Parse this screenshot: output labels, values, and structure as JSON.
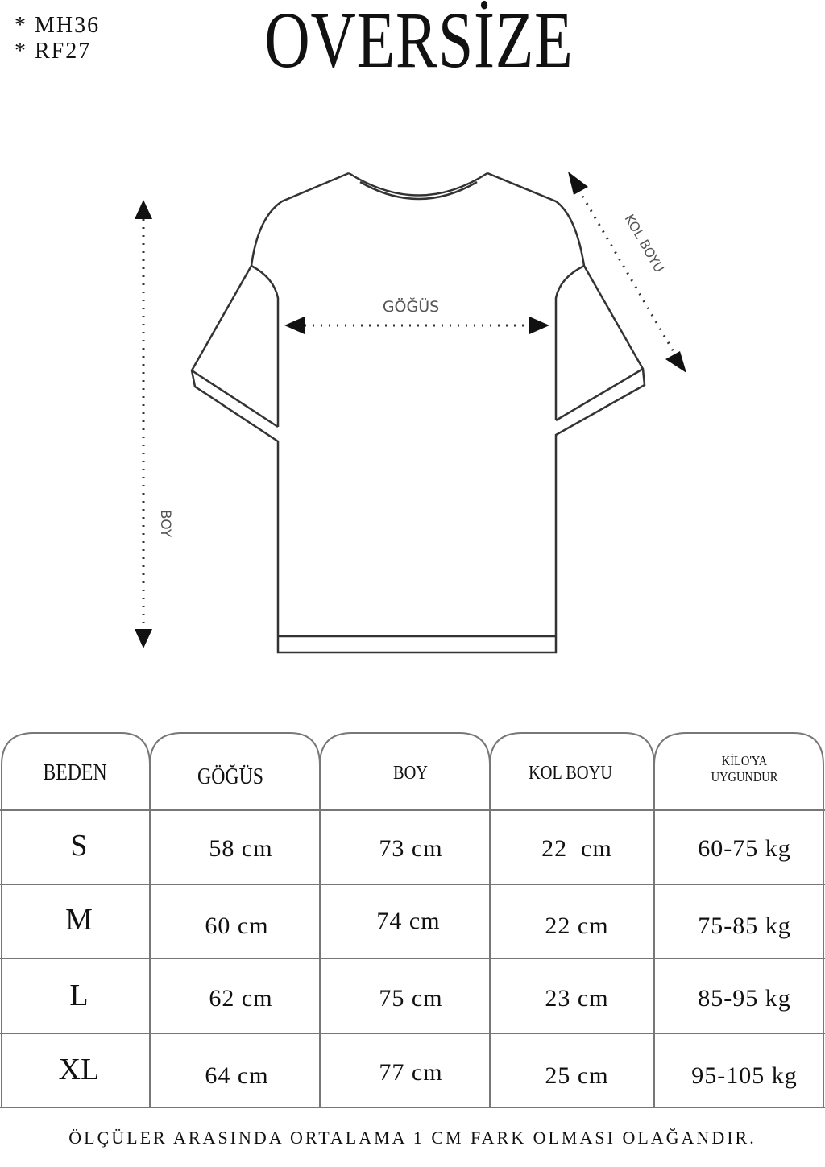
{
  "codes": [
    "* MH36",
    "* RF27"
  ],
  "title": "OVERSİZE",
  "diagram": {
    "chest_label": "GÖĞÜS",
    "length_label": "BOY",
    "sleeve_label": "KOL BOYU"
  },
  "table": {
    "headers": [
      "BEDEN",
      "GÖĞÜS",
      "BOY",
      "KOL BOYU",
      "KİLO'YA",
      "UYGUNDUR"
    ],
    "rows": [
      {
        "size": "S",
        "chest": "58 cm",
        "length": "73 cm",
        "sleeve": "22  cm",
        "weight": "60-75 kg"
      },
      {
        "size": "M",
        "chest": "60 cm",
        "length": "74 cm",
        "sleeve": "22 cm",
        "weight": "75-85 kg"
      },
      {
        "size": "L",
        "chest": "62 cm",
        "length": "75 cm",
        "sleeve": "23 cm",
        "weight": "85-95 kg"
      },
      {
        "size": "XL",
        "chest": "64 cm",
        "length": "77 cm",
        "sleeve": "25 cm",
        "weight": "95-105 kg"
      }
    ]
  },
  "footer": "ÖLÇÜLER ARASINDA ORTALAMA 1 CM FARK OLMASI OLAĞANDIR."
}
